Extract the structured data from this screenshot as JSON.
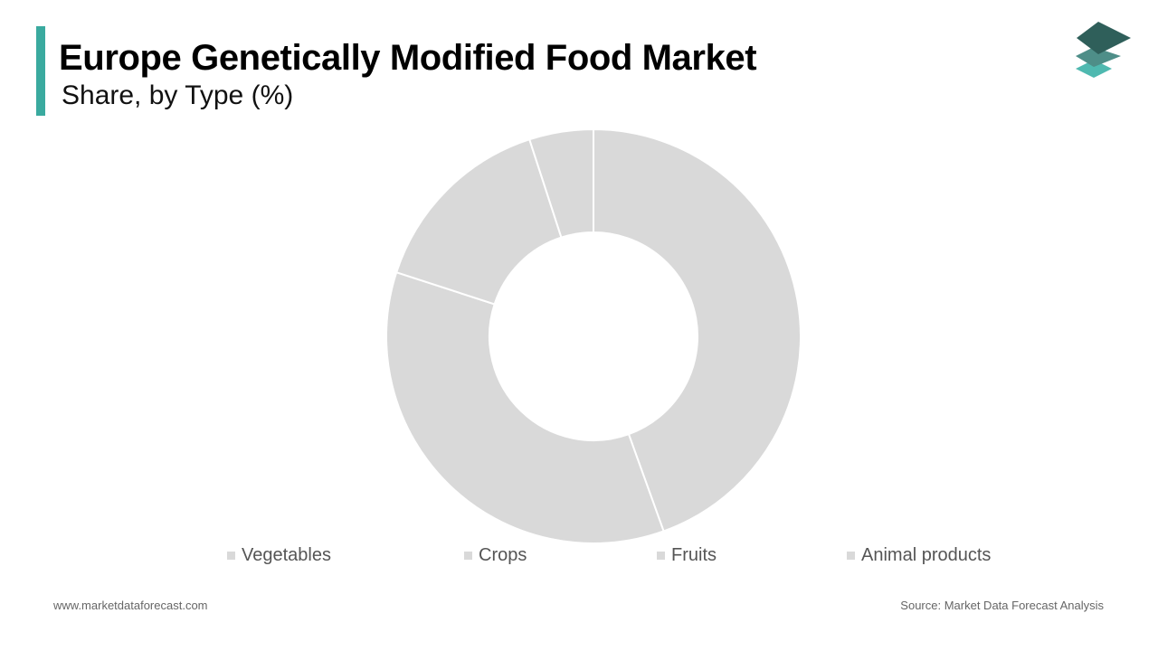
{
  "header": {
    "title": "Europe Genetically Modified Food Market",
    "subtitle": "Share, by Type (%)",
    "accent_color": "#3aaa9f"
  },
  "logo": {
    "icon": "stacked-layers-logo",
    "colors": [
      "#2f5f5a",
      "#4e8e88",
      "#4fb9b0"
    ]
  },
  "chart_data": {
    "type": "pie",
    "variant": "donut",
    "title": "Europe Genetically Modified Food Market",
    "subtitle": "Share, by Type (%)",
    "categories": [
      "Vegetables",
      "Crops",
      "Fruits",
      "Animal products"
    ],
    "values": [
      44.5,
      35.5,
      15.0,
      5.0
    ],
    "colors": [
      "#d9d9d9",
      "#d9d9d9",
      "#d9d9d9",
      "#d9d9d9"
    ],
    "legend_placement": "bottom",
    "start_angle_deg": 0,
    "direction": "clockwise"
  },
  "footer": {
    "website": "www.marketdataforecast.com",
    "source": "Source: Market Data Forecast Analysis"
  }
}
